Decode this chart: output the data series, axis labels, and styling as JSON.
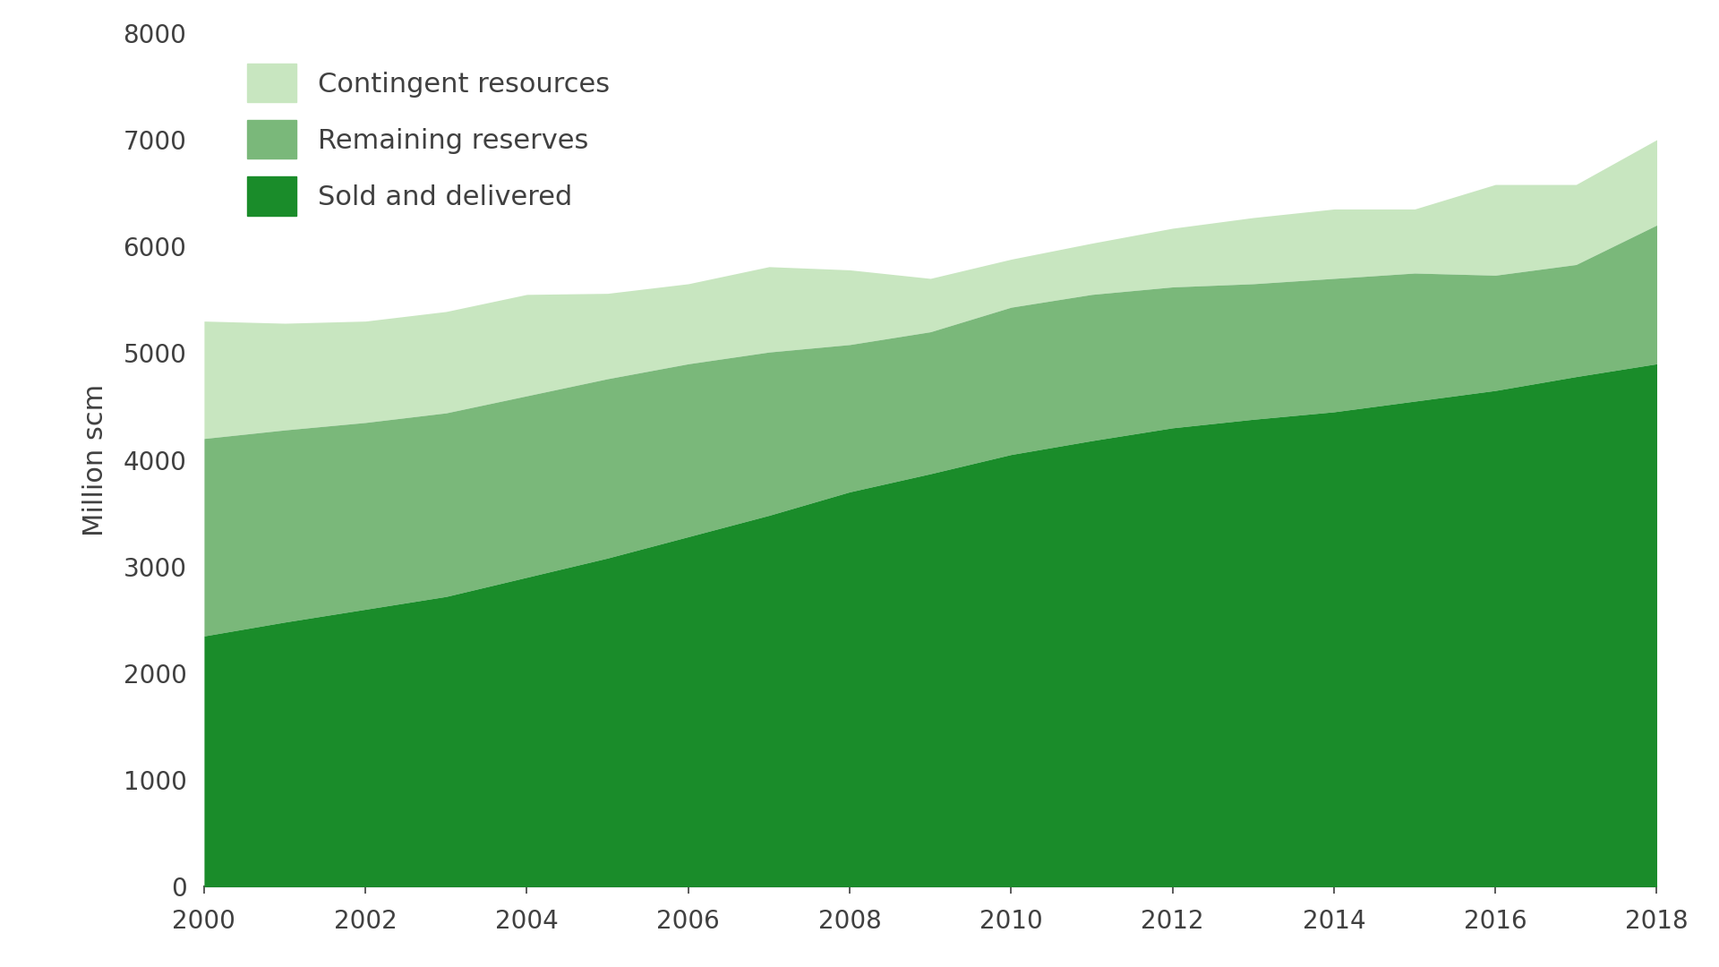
{
  "years": [
    2000,
    2001,
    2002,
    2003,
    2004,
    2005,
    2006,
    2007,
    2008,
    2009,
    2010,
    2011,
    2012,
    2013,
    2014,
    2015,
    2016,
    2017,
    2018
  ],
  "sold_and_delivered": [
    2350,
    2480,
    2600,
    2720,
    2900,
    3080,
    3280,
    3480,
    3700,
    3870,
    4050,
    4180,
    4300,
    4380,
    4450,
    4550,
    4650,
    4780,
    4900
  ],
  "remaining_reserves": [
    1850,
    1800,
    1750,
    1720,
    1700,
    1680,
    1620,
    1530,
    1380,
    1330,
    1380,
    1370,
    1320,
    1270,
    1250,
    1200,
    1080,
    1050,
    1300
  ],
  "contingent_resources": [
    1100,
    1000,
    950,
    950,
    950,
    800,
    750,
    800,
    700,
    500,
    450,
    480,
    550,
    620,
    650,
    600,
    850,
    750,
    800
  ],
  "color_sold": "#1a8c2a",
  "color_remaining": "#7ab87a",
  "color_contingent": "#c8e6c0",
  "ylabel": "Million scm",
  "ylim": [
    0,
    8000
  ],
  "yticks": [
    0,
    1000,
    2000,
    3000,
    4000,
    5000,
    6000,
    7000,
    8000
  ],
  "xticks": [
    2000,
    2002,
    2004,
    2006,
    2008,
    2010,
    2012,
    2014,
    2016,
    2018
  ],
  "legend_labels": [
    "Contingent resources",
    "Remaining reserves",
    "Sold and delivered"
  ],
  "bg_color": "#ffffff",
  "text_color": "#404040",
  "font_size": 22,
  "tick_font_size": 20
}
